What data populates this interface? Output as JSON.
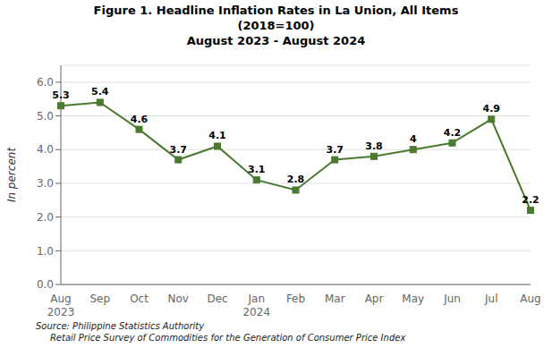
{
  "chart_data": {
    "type": "line",
    "title": "Figure 1. Headline Inflation Rates in La Union, All Items",
    "subtitle": [
      "(2018=100)",
      "August 2023 - August 2024"
    ],
    "categories": [
      "Aug",
      "Sep",
      "Oct",
      "Nov",
      "Dec",
      "Jan",
      "Feb",
      "Mar",
      "Apr",
      "May",
      "Jun",
      "Jul",
      "Aug"
    ],
    "sub_categories": [
      "2023",
      null,
      null,
      null,
      null,
      "2024",
      null,
      null,
      null,
      null,
      null,
      null,
      null
    ],
    "values": [
      5.3,
      5.4,
      4.6,
      3.7,
      4.1,
      3.1,
      2.8,
      3.7,
      3.8,
      4.0,
      4.2,
      4.9,
      2.2
    ],
    "color": "#4a7a2e",
    "marker": "square",
    "ylabel": "In percent",
    "ylim": [
      0.0,
      6.5
    ],
    "yticks": [
      {
        "value": 0.0,
        "label": "0.0"
      },
      {
        "value": 1.0,
        "label": "1.0"
      },
      {
        "value": 2.0,
        "label": "2.0"
      },
      {
        "value": 3.0,
        "label": "3.0"
      },
      {
        "value": 4.0,
        "label": "4.0"
      },
      {
        "value": 5.0,
        "label": "5.0"
      },
      {
        "value": 6.0,
        "label": "6.0"
      }
    ],
    "grid": true,
    "data_labels": true,
    "source": [
      "Source: Philippine Statistics Authority",
      "     Retail Price Survey of Commodities for the Generation of Consumer Price Index"
    ]
  }
}
